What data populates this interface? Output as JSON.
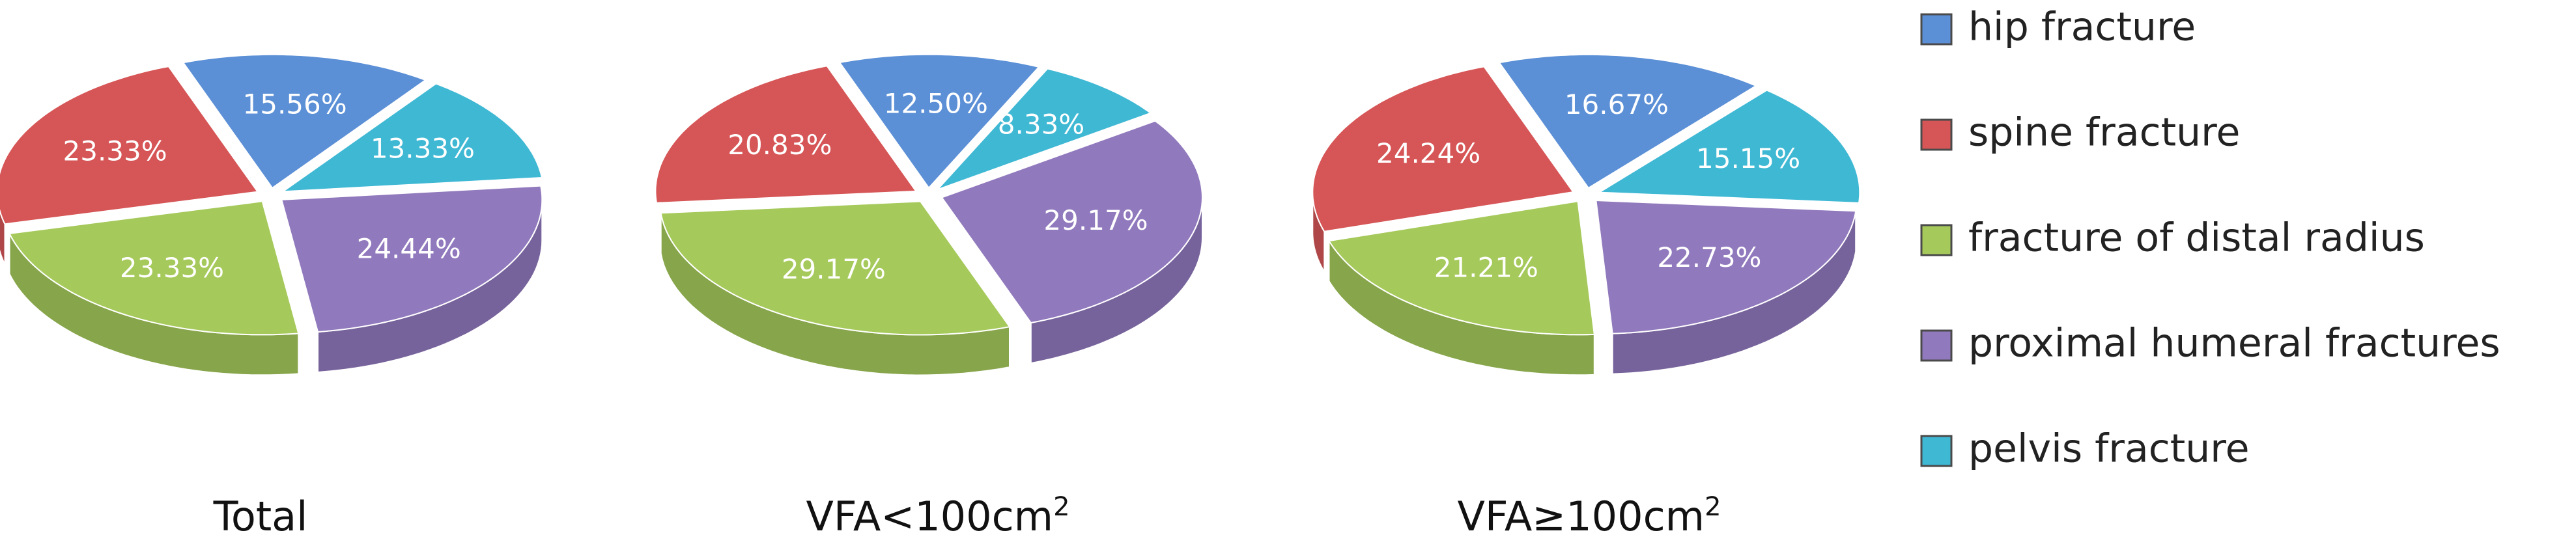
{
  "colors": {
    "hip": "#5b8fd6",
    "spine": "#d65556",
    "radius": "#a5c95a",
    "humeral": "#9179bd",
    "pelvis": "#3fb8d4"
  },
  "legend": [
    {
      "key": "hip",
      "label": "hip fracture"
    },
    {
      "key": "spine",
      "label": "spine fracture"
    },
    {
      "key": "radius",
      "label": "fracture of distal radius"
    },
    {
      "key": "humeral",
      "label": "proximal humeral fractures"
    },
    {
      "key": "pelvis",
      "label": "pelvis fracture"
    }
  ],
  "chart_data": [
    {
      "type": "pie",
      "title": "Total",
      "categories": [
        "hip fracture",
        "pelvis fracture",
        "proximal humeral fractures",
        "fracture of distal radius",
        "spine fracture"
      ],
      "keys": [
        "hip",
        "pelvis",
        "humeral",
        "radius",
        "spine"
      ],
      "values": [
        15.56,
        13.33,
        24.44,
        23.33,
        23.33
      ],
      "labels": [
        "15.56%",
        "13.33%",
        "24.44%",
        "23.33%",
        "23.33%"
      ]
    },
    {
      "type": "pie",
      "title": "VFA<100cm",
      "title_sup": "2",
      "categories": [
        "hip fracture",
        "pelvis fracture",
        "proximal humeral fractures",
        "fracture of distal radius",
        "spine fracture"
      ],
      "keys": [
        "hip",
        "pelvis",
        "humeral",
        "radius",
        "spine"
      ],
      "values": [
        12.5,
        8.33,
        29.17,
        29.17,
        20.83
      ],
      "labels": [
        "12.50%",
        "8.33%",
        "29.17%",
        "29.17%",
        "20.83%"
      ]
    },
    {
      "type": "pie",
      "title": "VFA≥100cm",
      "title_sup": "2",
      "categories": [
        "hip fracture",
        "pelvis fracture",
        "proximal humeral fractures",
        "fracture of distal radius",
        "spine fracture"
      ],
      "keys": [
        "hip",
        "pelvis",
        "humeral",
        "radius",
        "spine"
      ],
      "values": [
        16.67,
        15.15,
        22.73,
        21.21,
        24.24
      ],
      "labels": [
        "16.67%",
        "15.15%",
        "22.73%",
        "21.21%",
        "24.24%"
      ]
    }
  ]
}
